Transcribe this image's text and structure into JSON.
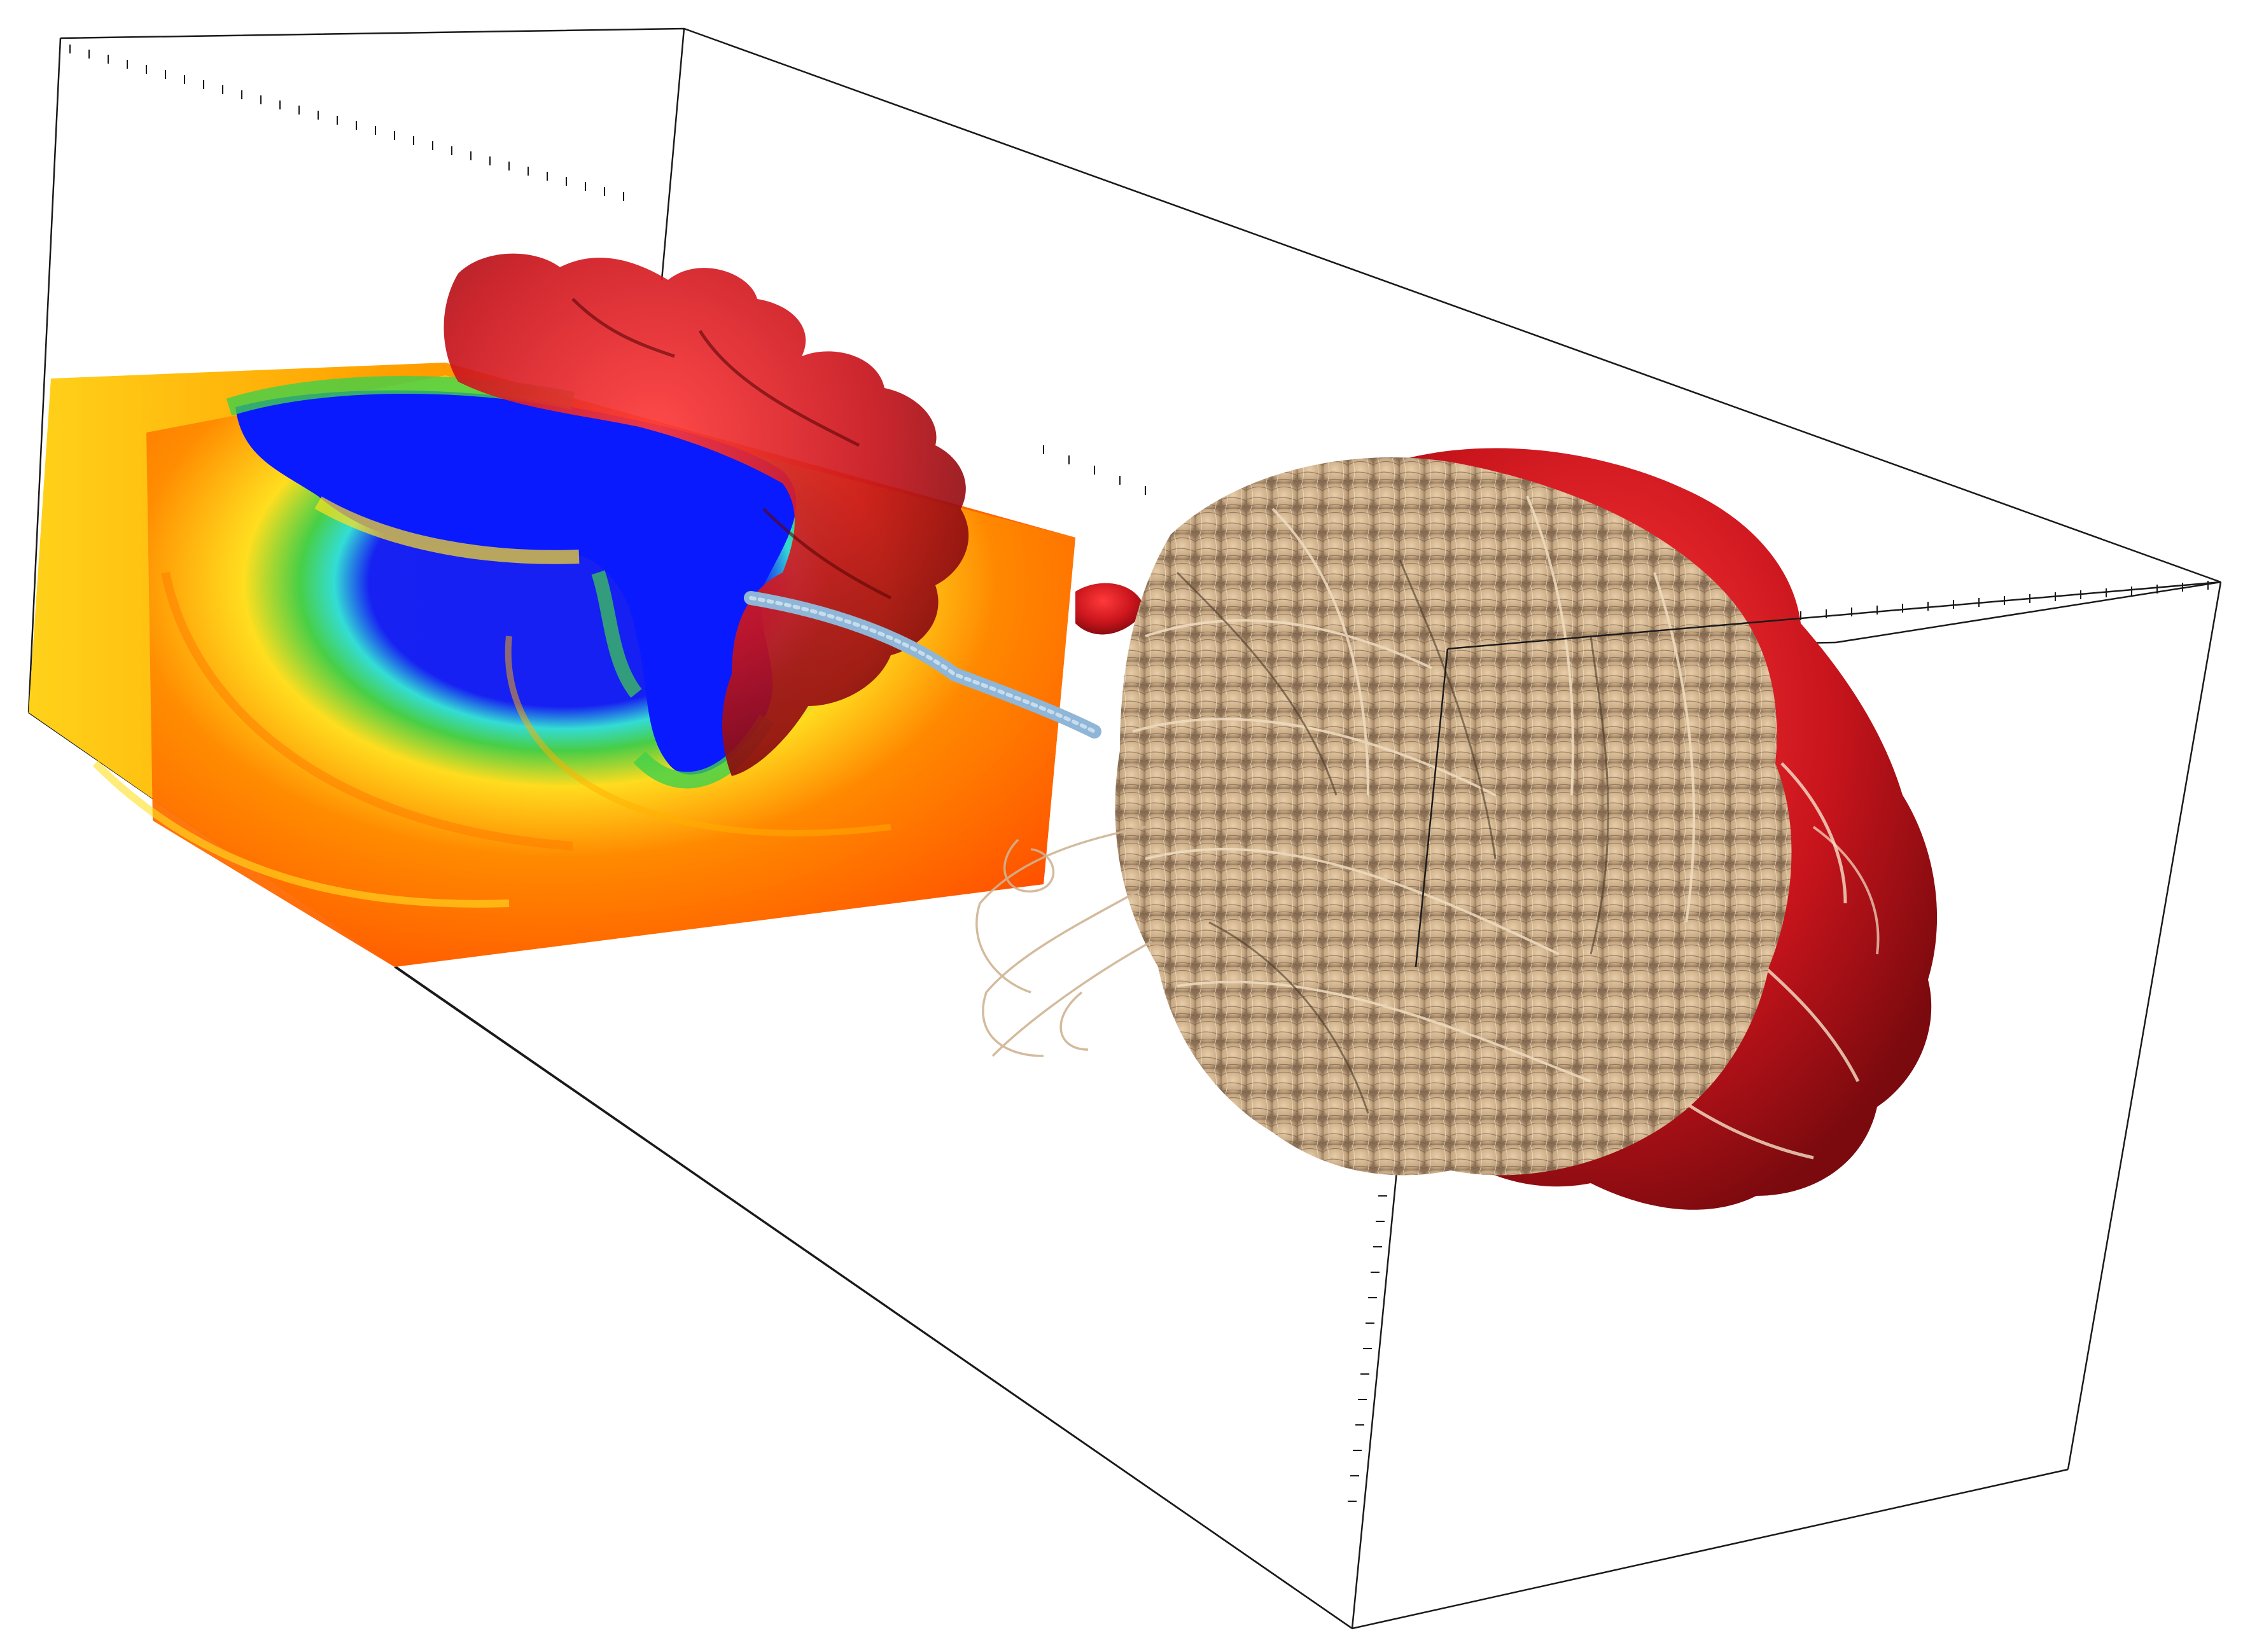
{
  "scene": {
    "description_visible_text": [],
    "colors": {
      "background": "#ffffff",
      "box_lines": "#1a1a1a",
      "slice_warm": "#ff5a00",
      "slice_mid": "#ffd21a",
      "slice_cool": "#0a1aff",
      "slice_green": "#3ed14a",
      "isosurface_red": "#c8141c",
      "streamlines": "#d9c0a0",
      "jet_blue": "#8fb6d6"
    },
    "layers": [
      "bounding-box",
      "axis-ticks",
      "color-slice",
      "red-isosurface",
      "jet-tube",
      "streamline-bundle"
    ]
  }
}
